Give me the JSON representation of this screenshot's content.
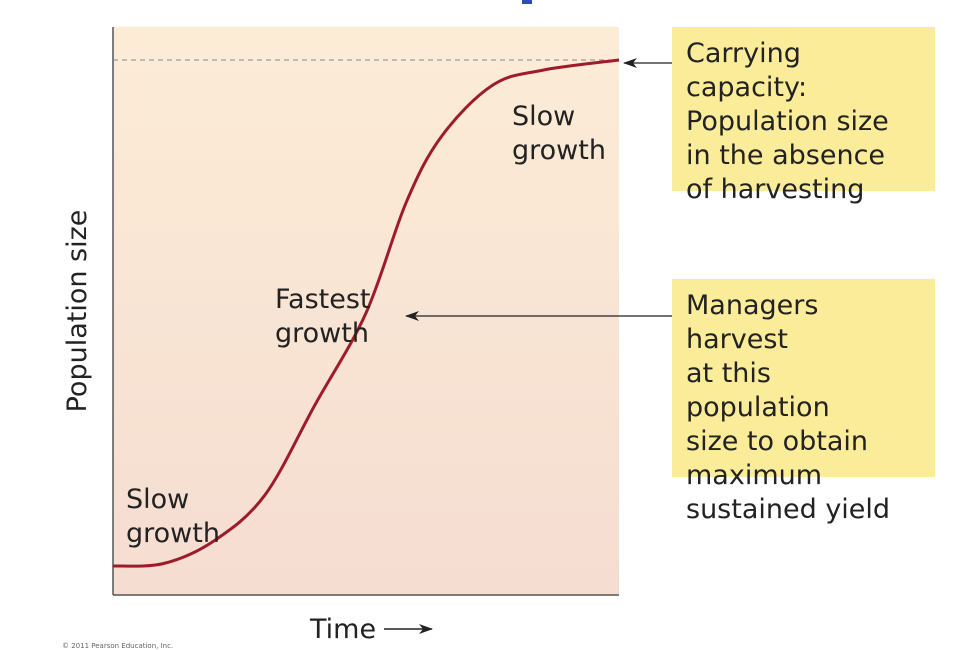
{
  "chart_data": {
    "type": "line",
    "title": "",
    "xlabel": "Time",
    "ylabel": "Population size",
    "xlim": [
      0,
      10
    ],
    "ylim": [
      0,
      1
    ],
    "grid": false,
    "series": [
      {
        "color": "#9e1b2a",
        "x": [
          0,
          1,
          2,
          3,
          4,
          5,
          5.8,
          6.5,
          7.5,
          8.5,
          10
        ],
        "y": [
          0.0,
          0.005,
          0.05,
          0.14,
          0.32,
          0.5,
          0.72,
          0.85,
          0.95,
          0.98,
          1.0
        ]
      }
    ],
    "carrying_capacity_y": 1.0,
    "msy_y": 0.5,
    "annotations": {
      "slow_low": "Slow\ngrowth",
      "fastest": "Fastest\ngrowth",
      "slow_high": "Slow\ngrowth"
    }
  },
  "callouts": {
    "carrying_capacity": "Carrying capacity:\nPopulation size\nin the absence\nof harvesting",
    "msy": "Managers harvest\nat this population\nsize to obtain\nmaximum\nsustained yield"
  },
  "copyright": "© 2011 Pearson Education, Inc.",
  "colors": {
    "curve": "#9e1b2a",
    "callout_bg": "#fbec9a",
    "plot_top": "#fcecd6",
    "plot_bottom": "#f5ddd1"
  }
}
